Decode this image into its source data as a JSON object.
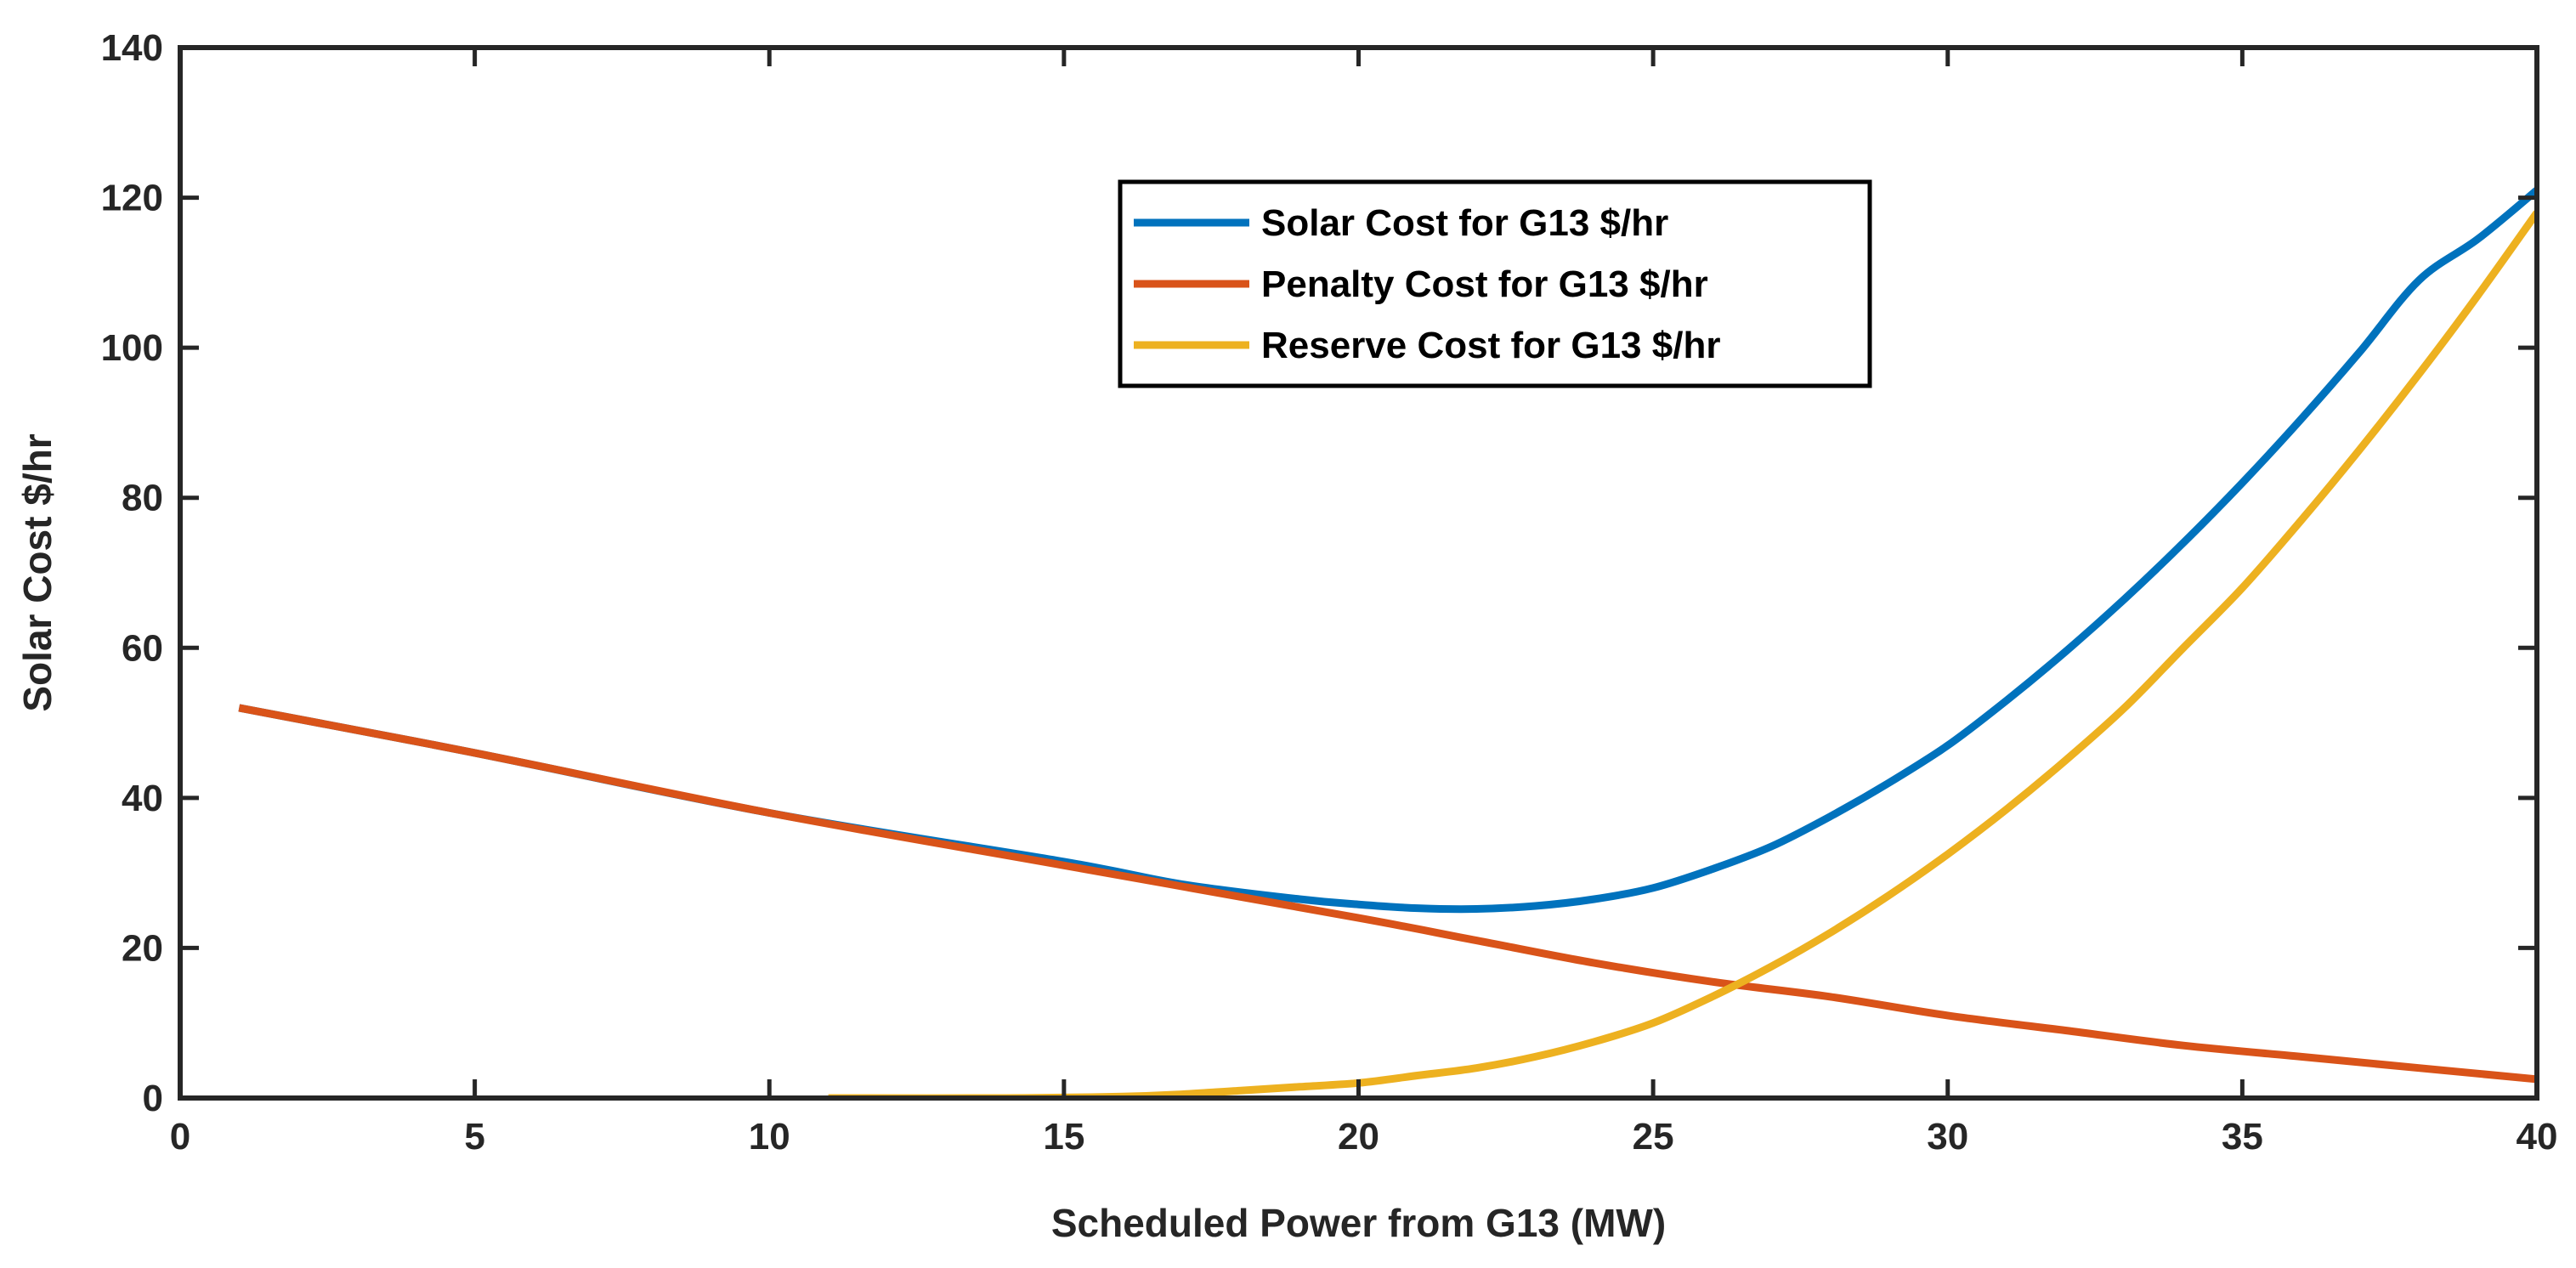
{
  "chart_data": {
    "type": "line",
    "title": "",
    "xlabel": "Scheduled Power from G13 (MW)",
    "ylabel": "Solar Cost $/hr",
    "xlim": [
      0,
      40
    ],
    "ylim": [
      0,
      140
    ],
    "xticks": [
      0,
      5,
      10,
      15,
      20,
      25,
      30,
      35,
      40
    ],
    "yticks": [
      0,
      20,
      40,
      60,
      80,
      100,
      120,
      140
    ],
    "grid": false,
    "legend_position": "top-center",
    "series": [
      {
        "name": "Solar Cost for G13 $/hr",
        "color": "#0072BD",
        "x": [
          1,
          5,
          10,
          15,
          17,
          19,
          20,
          21,
          22,
          23,
          24,
          25,
          26,
          27,
          28,
          29,
          30,
          31,
          32,
          33,
          34,
          35,
          36,
          37,
          38,
          39,
          40
        ],
        "y": [
          52,
          46,
          38,
          31.5,
          28.5,
          26.5,
          25.8,
          25.3,
          25.2,
          25.6,
          26.5,
          28,
          30.5,
          33.5,
          37.5,
          42,
          47,
          53,
          59.5,
          66.5,
          74,
          82,
          90.5,
          99.5,
          109,
          114.5,
          121
        ]
      },
      {
        "name": "Penalty Cost for G13 $/hr",
        "color": "#D95319",
        "x": [
          1,
          5,
          10,
          15,
          20,
          22,
          24,
          26,
          28,
          30,
          32,
          34,
          36,
          38,
          40
        ],
        "y": [
          52,
          46,
          38,
          31,
          24,
          21,
          18,
          15.5,
          13.5,
          11,
          9,
          7,
          5.5,
          4,
          2.5
        ]
      },
      {
        "name": "Reserve Cost for G13 $/hr",
        "color": "#EDB120",
        "x": [
          11,
          14,
          16,
          17,
          18,
          19,
          20,
          21,
          22,
          23,
          24,
          25,
          26,
          27,
          28,
          29,
          30,
          31,
          32,
          33,
          34,
          35,
          36,
          37,
          38,
          39,
          40
        ],
        "y": [
          0,
          0,
          0.2,
          0.5,
          1,
          1.5,
          2,
          3,
          4,
          5.5,
          7.5,
          10,
          13.5,
          17.5,
          22,
          27,
          32.5,
          38.5,
          45,
          52,
          60,
          68,
          77,
          86.5,
          96.5,
          107,
          118
        ]
      }
    ]
  }
}
